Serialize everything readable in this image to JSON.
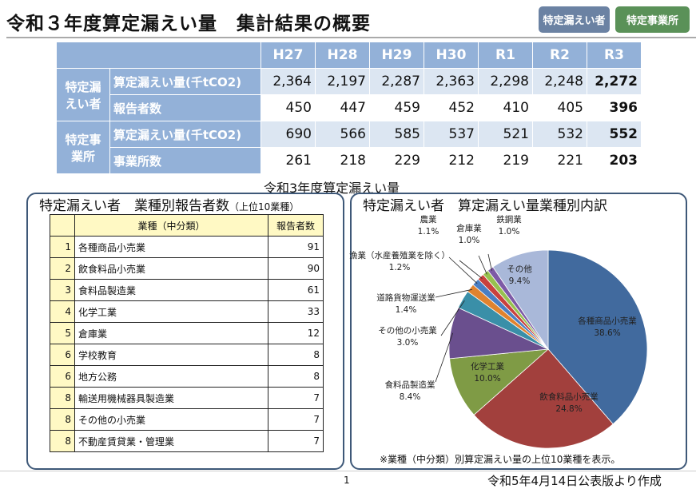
{
  "header": {
    "title": "令和３年度算定漏えい量　集計結果の概要",
    "btn_reporters": "特定漏えい者",
    "btn_sites": "特定事業所"
  },
  "summary": {
    "years": [
      "H27",
      "H28",
      "H29",
      "H30",
      "R1",
      "R2",
      "R3"
    ],
    "groups": [
      {
        "label": "特定漏えい者",
        "rows": [
          {
            "label": "算定漏えい量(千tCO2)",
            "values": [
              "2,364",
              "2,197",
              "2,287",
              "2,363",
              "2,298",
              "2,248",
              "2,272"
            ]
          },
          {
            "label": "報告者数",
            "values": [
              "450",
              "447",
              "459",
              "452",
              "410",
              "405",
              "396"
            ]
          }
        ]
      },
      {
        "label": "特定事業所",
        "rows": [
          {
            "label": "算定漏えい量(千tCO2)",
            "values": [
              "690",
              "566",
              "585",
              "537",
              "521",
              "532",
              "552"
            ]
          },
          {
            "label": "事業所数",
            "values": [
              "261",
              "218",
              "229",
              "212",
              "219",
              "221",
              "203"
            ]
          }
        ]
      }
    ]
  },
  "subtitle": "令和3年度算定漏えい量",
  "ranking": {
    "title": "特定漏えい者　業種別報告者数",
    "title_note": "（上位10業種）",
    "col_industry": "業種（中分類）",
    "col_count": "報告者数",
    "rows": [
      {
        "rank": "1",
        "name": "各種商品小売業",
        "count": "91"
      },
      {
        "rank": "2",
        "name": "飲食料品小売業",
        "count": "90"
      },
      {
        "rank": "3",
        "name": "食料品製造業",
        "count": "61"
      },
      {
        "rank": "4",
        "name": "化学工業",
        "count": "33"
      },
      {
        "rank": "5",
        "name": "倉庫業",
        "count": "12"
      },
      {
        "rank": "6",
        "name": "学校教育",
        "count": "8"
      },
      {
        "rank": "6",
        "name": "地方公務",
        "count": "8"
      },
      {
        "rank": "8",
        "name": "輸送用機械器具製造業",
        "count": "7"
      },
      {
        "rank": "8",
        "name": "その他の小売業",
        "count": "7"
      },
      {
        "rank": "8",
        "name": "不動産賃貸業・管理業",
        "count": "7"
      }
    ]
  },
  "chart_data": {
    "type": "pie",
    "title": "特定漏えい者　算定漏えい量業種別内訳",
    "categories": [
      "各種商品小売業",
      "飲食料品小売業",
      "化学工業",
      "食料品製造業",
      "その他の小売業",
      "道路貨物運送業",
      "漁業（水産養殖業を除く）",
      "農業",
      "倉庫業",
      "鉄鋼業",
      "その他"
    ],
    "values": [
      38.6,
      24.8,
      10.0,
      8.4,
      3.0,
      1.4,
      1.2,
      1.1,
      1.0,
      1.0,
      9.4
    ],
    "labels": [
      "38.6%",
      "24.8%",
      "10.0%",
      "8.4%",
      "3.0%",
      "1.4%",
      "1.2%",
      "1.1%",
      "1.0%",
      "1.0%",
      "9.4%"
    ],
    "colors": [
      "#416a9e",
      "#a2403d",
      "#7f9b45",
      "#6a4f8e",
      "#3a8fa8",
      "#e0832f",
      "#4a7ec2",
      "#c9413d",
      "#97c14f",
      "#7d5aa6",
      "#a9b8d9"
    ]
  },
  "note": "※業種（中分類）別算定漏えい量の上位10業種を表示。",
  "footer": {
    "page": "1",
    "source": "令和5年4月14日公表版より作成"
  }
}
